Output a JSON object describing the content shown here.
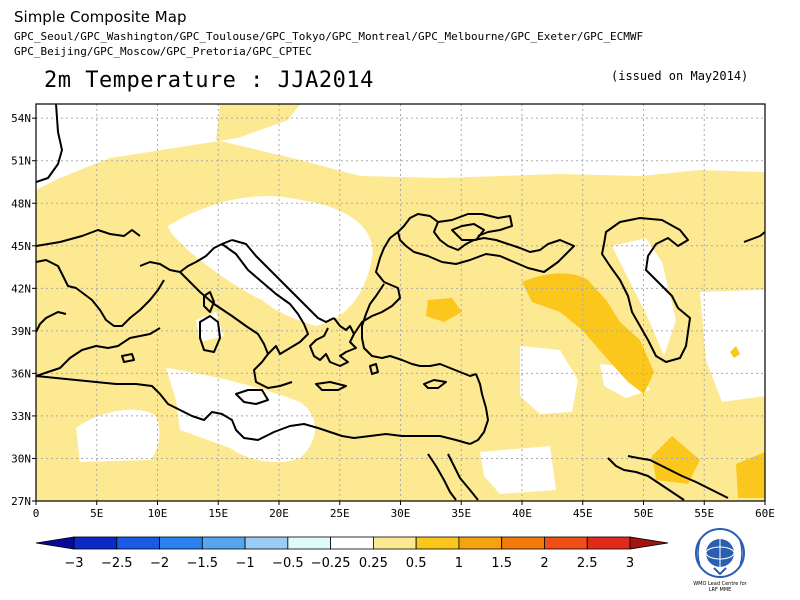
{
  "header": {
    "app_title": "Simple Composite Map",
    "centers_line1": "GPC_Seoul/GPC_Washington/GPC_Toulouse/GPC_Tokyo/GPC_Montreal/GPC_Melbourne/GPC_Exeter/GPC_ECMWF",
    "centers_line2": "GPC_Beijing/GPC_Moscow/GPC_Pretoria/GPC_CPTEC",
    "main_title": "2m Temperature : JJA2014",
    "issued": "(issued on May2014)"
  },
  "map": {
    "lon_range": [
      0,
      60
    ],
    "lat_range": [
      27,
      55
    ],
    "lon_ticks": [
      {
        "value": 0,
        "label": "0"
      },
      {
        "value": 5,
        "label": "5E"
      },
      {
        "value": 10,
        "label": "10E"
      },
      {
        "value": 15,
        "label": "15E"
      },
      {
        "value": 20,
        "label": "20E"
      },
      {
        "value": 25,
        "label": "25E"
      },
      {
        "value": 30,
        "label": "30E"
      },
      {
        "value": 35,
        "label": "35E"
      },
      {
        "value": 40,
        "label": "40E"
      },
      {
        "value": 45,
        "label": "45E"
      },
      {
        "value": 50,
        "label": "50E"
      },
      {
        "value": 55,
        "label": "55E"
      },
      {
        "value": 60,
        "label": "60E"
      }
    ],
    "lat_ticks": [
      {
        "value": 27,
        "label": "27N"
      },
      {
        "value": 30,
        "label": "30N"
      },
      {
        "value": 33,
        "label": "33N"
      },
      {
        "value": 36,
        "label": "36N"
      },
      {
        "value": 39,
        "label": "39N"
      },
      {
        "value": 42,
        "label": "42N"
      },
      {
        "value": 45,
        "label": "45N"
      },
      {
        "value": 48,
        "label": "48N"
      },
      {
        "value": 51,
        "label": "51N"
      },
      {
        "value": 54,
        "label": "54N"
      }
    ],
    "gridlines": true,
    "field_colors": {
      "below": "#ffffff",
      "band_0_25_0_5": "#fde992",
      "band_0_5_1": "#fbc71c"
    }
  },
  "colorbar": {
    "labels": [
      "−3",
      "−2.5",
      "−2",
      "−1.5",
      "−1",
      "−0.5",
      "−0.25",
      "0.25",
      "0.5",
      "1",
      "1.5",
      "2",
      "2.5",
      "3"
    ],
    "colors": [
      "#0a2ac8",
      "#1a5ae6",
      "#2a82f0",
      "#55a6ee",
      "#9acdf5",
      "#dffafd",
      "#ffffff",
      "#fde992",
      "#fbc71c",
      "#f5a30e",
      "#f47a0a",
      "#f04e14",
      "#e02a1a"
    ],
    "low_end_color": "#0a0a9a",
    "high_end_color": "#a51212"
  },
  "logo": {
    "icon": "wmo-logo-icon",
    "caption_line1": "WMO Lead Centre for",
    "caption_line2": "LRF MME"
  }
}
